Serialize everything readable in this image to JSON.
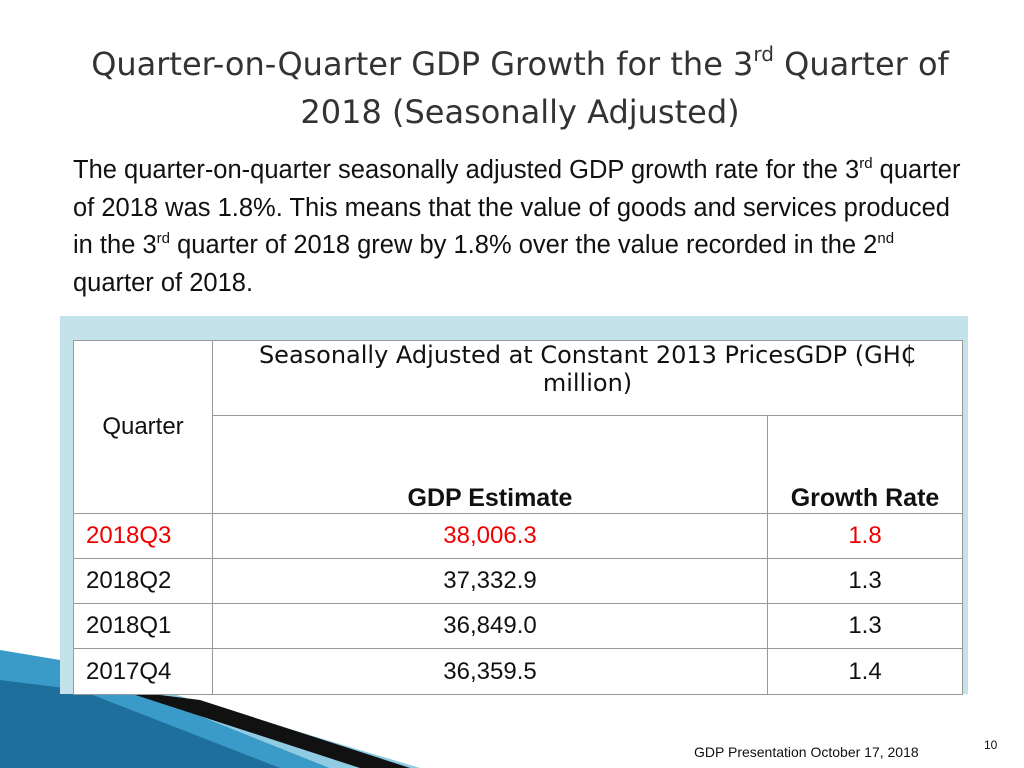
{
  "title": [
    {
      "text": "Quarter-on-Quarter GDP Growth for the 3"
    },
    {
      "sup": "rd"
    },
    {
      "text": " Quarter of 2018 (Seasonally Adjusted)"
    }
  ],
  "paragraph": [
    {
      "text": "The quarter-on-quarter seasonally adjusted GDP growth rate for the 3"
    },
    {
      "sup": "rd"
    },
    {
      "text": " quarter of 2018 was 1.8%. This means that the value of goods and services produced in the 3"
    },
    {
      "sup": "rd"
    },
    {
      "text": " quarter of 2018 grew by 1.8% over the value recorded in the 2"
    },
    {
      "sup": "nd"
    },
    {
      "text": " quarter of 2018."
    }
  ],
  "table": {
    "header": {
      "quarter": "Quarter",
      "group": "Seasonally Adjusted at Constant 2013 PricesGDP (GH₵ million)",
      "columns": [
        "GDP Estimate",
        "Growth Rate"
      ]
    },
    "rows": [
      [
        "2018Q3",
        "38,006.3",
        "1.8"
      ],
      [
        "2018Q2",
        "37,332.9",
        "1.3"
      ],
      [
        "2018Q1",
        "36,849.0",
        "1.3"
      ],
      [
        "2017Q4",
        "36,359.5",
        "1.4"
      ]
    ]
  },
  "footer": {
    "text": "GDP Presentation October 17, 2018",
    "page": "10"
  }
}
